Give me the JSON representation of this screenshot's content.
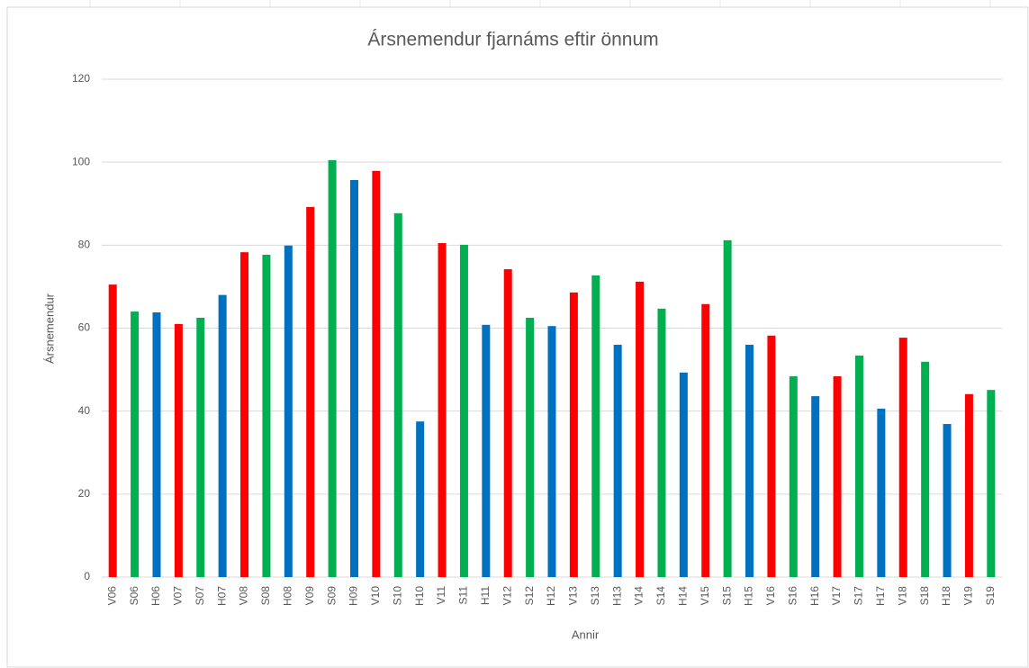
{
  "chart_data": {
    "type": "bar",
    "title": "Ársnemendur fjarnáms eftir önnum",
    "x_label": "Annir",
    "y_label": "Ársnemendur",
    "categories": [
      "V06",
      "S06",
      "H06",
      "V07",
      "S07",
      "H07",
      "V08",
      "S08",
      "H08",
      "V09",
      "S09",
      "H09",
      "V10",
      "S10",
      "H10",
      "V11",
      "S11",
      "H11",
      "V12",
      "S12",
      "H12",
      "V13",
      "S13",
      "H13",
      "V14",
      "S14",
      "H14",
      "V15",
      "S15",
      "H15",
      "V16",
      "S16",
      "H16",
      "V17",
      "S17",
      "H17",
      "V18",
      "S18",
      "H18",
      "V19",
      "S19"
    ],
    "values": [
      70.5,
      64,
      63.8,
      61,
      62.5,
      68,
      78.3,
      77.7,
      79.9,
      89.2,
      100.5,
      95.7,
      97.9,
      87.7,
      37.5,
      80.5,
      80.1,
      60.8,
      74.2,
      62.5,
      60.5,
      68.6,
      72.7,
      56,
      71.2,
      64.7,
      49.3,
      65.8,
      81.2,
      56,
      58.2,
      48.4,
      43.6,
      48.4,
      53.4,
      40.6,
      57.7,
      51.9,
      36.9,
      44.1,
      45.1
    ],
    "colors": [
      "#ff0000",
      "#00b050",
      "#0070c0",
      "#ff0000",
      "#00b050",
      "#0070c0",
      "#ff0000",
      "#00b050",
      "#0070c0",
      "#ff0000",
      "#00b050",
      "#0070c0",
      "#ff0000",
      "#00b050",
      "#0070c0",
      "#ff0000",
      "#00b050",
      "#0070c0",
      "#ff0000",
      "#00b050",
      "#0070c0",
      "#ff0000",
      "#00b050",
      "#0070c0",
      "#ff0000",
      "#00b050",
      "#0070c0",
      "#ff0000",
      "#00b050",
      "#0070c0",
      "#ff0000",
      "#00b050",
      "#0070c0",
      "#ff0000",
      "#00b050",
      "#0070c0",
      "#ff0000",
      "#00b050",
      "#0070c0",
      "#ff0000",
      "#00b050"
    ],
    "ylim": [
      0,
      120
    ],
    "yticks": [
      0,
      20,
      40,
      60,
      80,
      100,
      120
    ],
    "grid": true
  }
}
